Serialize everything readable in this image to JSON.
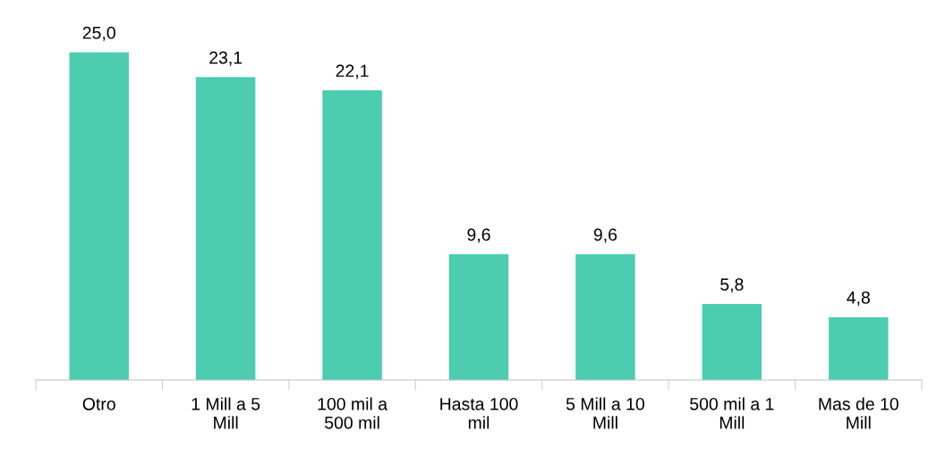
{
  "chart_data": {
    "type": "bar",
    "categories": [
      "Otro",
      "1 Mill a 5 Mill",
      "100 mil a 500 mil",
      "Hasta 100 mil",
      "5 Mill a 10 Mill",
      "500 mil a 1 Mill",
      "Mas de 10 Mill"
    ],
    "values": [
      25.0,
      23.1,
      22.1,
      9.6,
      9.6,
      5.8,
      4.8
    ],
    "value_labels": [
      "25,0",
      "23,1",
      "22,1",
      "9,6",
      "9,6",
      "5,8",
      "4,8"
    ],
    "color": "#4ccdb0",
    "grid": false,
    "legend": false
  }
}
